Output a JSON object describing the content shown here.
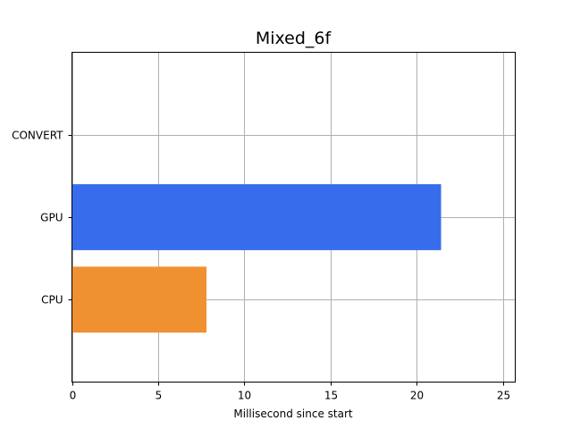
{
  "chart_data": {
    "type": "bar",
    "orientation": "horizontal",
    "title": "Mixed_6f",
    "xlabel": "Millisecond since start",
    "ylabel": "",
    "xlim": [
      0,
      25.7
    ],
    "xticks": [
      0,
      5,
      10,
      15,
      20,
      25
    ],
    "grid": true,
    "legend": "none",
    "categories": [
      "CPU",
      "GPU",
      "CONVERT"
    ],
    "bars": [
      {
        "category": "CPU",
        "start": 0,
        "end": 7.8,
        "color": "#f09131"
      },
      {
        "category": "GPU",
        "start": 0,
        "end": 21.4,
        "color": "#376ded"
      },
      {
        "category": "CONVERT",
        "start": 0,
        "end": 0,
        "color": "#2ca02c"
      }
    ]
  }
}
